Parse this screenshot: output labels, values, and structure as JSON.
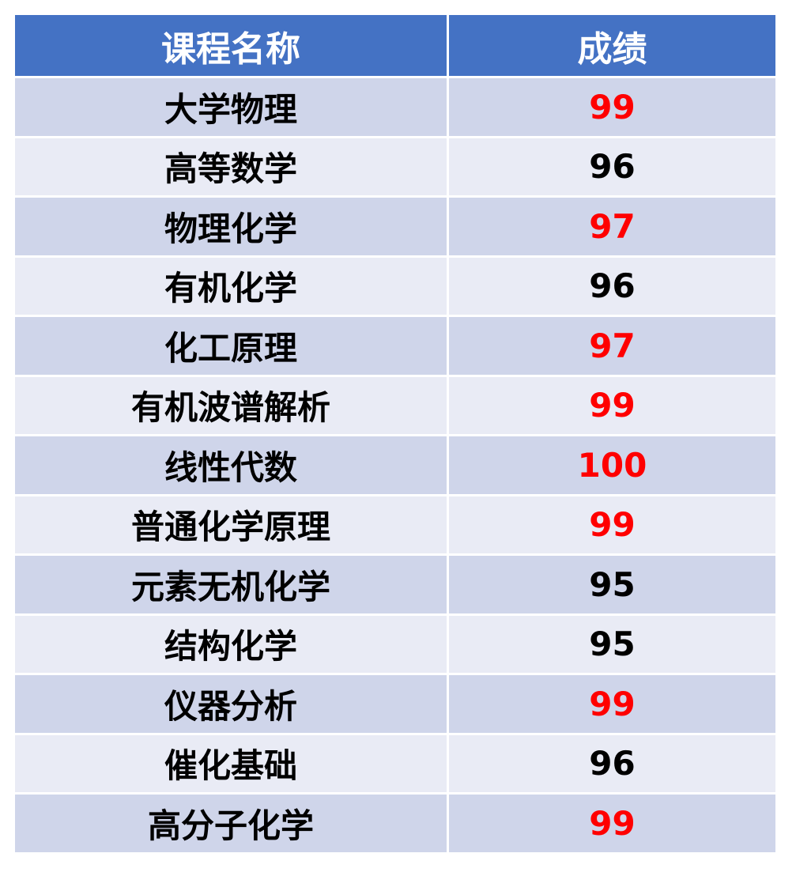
{
  "table": {
    "headers": [
      "课程名称",
      "成绩"
    ],
    "rows": [
      {
        "course": "大学物理",
        "score": "99",
        "highlight": true
      },
      {
        "course": "高等数学",
        "score": "96",
        "highlight": false
      },
      {
        "course": "物理化学",
        "score": "97",
        "highlight": true
      },
      {
        "course": "有机化学",
        "score": "96",
        "highlight": false
      },
      {
        "course": "化工原理",
        "score": "97",
        "highlight": true
      },
      {
        "course": "有机波谱解析",
        "score": "99",
        "highlight": true
      },
      {
        "course": "线性代数",
        "score": "100",
        "highlight": true
      },
      {
        "course": "普通化学原理",
        "score": "99",
        "highlight": true
      },
      {
        "course": "元素无机化学",
        "score": "95",
        "highlight": false
      },
      {
        "course": "结构化学",
        "score": "95",
        "highlight": false
      },
      {
        "course": "仪器分析",
        "score": "99",
        "highlight": true
      },
      {
        "course": "催化基础",
        "score": "96",
        "highlight": false
      },
      {
        "course": "高分子化学",
        "score": "99",
        "highlight": true
      }
    ]
  },
  "colors": {
    "header": "#4472C4",
    "row_odd": "#CFD5EA",
    "row_even": "#E9EBF5",
    "highlight": "#FF0000"
  }
}
